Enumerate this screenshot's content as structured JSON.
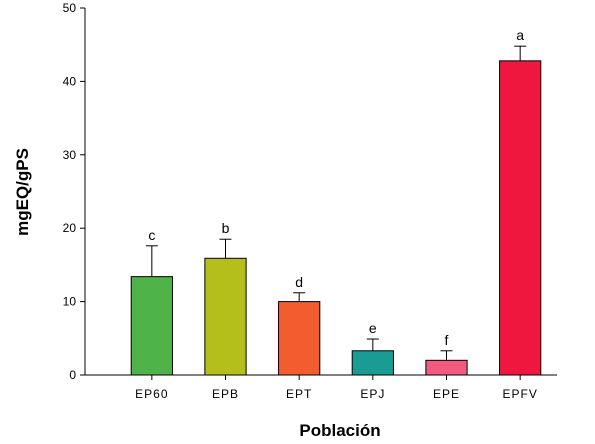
{
  "chart_data": {
    "type": "bar",
    "title": "",
    "xlabel": "Población",
    "ylabel": "mgEQ/gPS",
    "ylim": [
      0,
      50
    ],
    "yticks": [
      0,
      10,
      20,
      30,
      40,
      50
    ],
    "grid": false,
    "categories": [
      "EP60",
      "EPB",
      "EPT",
      "EPJ",
      "EPE",
      "EPFV"
    ],
    "values": [
      13.4,
      15.9,
      10.0,
      3.3,
      2.0,
      42.8
    ],
    "errors": [
      4.2,
      2.6,
      1.2,
      1.6,
      1.3,
      2.0
    ],
    "significance": [
      "c",
      "b",
      "d",
      "e",
      "f",
      "a"
    ],
    "colors": [
      "#4fb34a",
      "#b5bf1c",
      "#f25c2e",
      "#1a9c94",
      "#f25b7e",
      "#f0173f"
    ]
  }
}
